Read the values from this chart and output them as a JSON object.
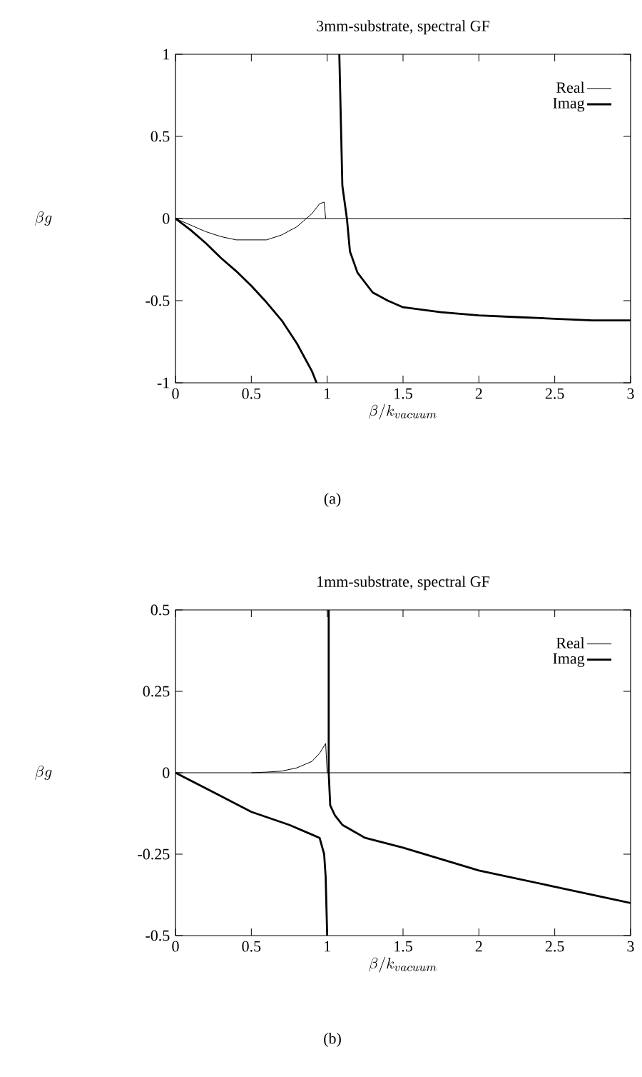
{
  "chart_data": [
    {
      "type": "line",
      "title": "3mm-substrate, spectral GF",
      "xlabel": "\\beta/k_{vacuum}",
      "ylabel": "\\beta g",
      "xlim": [
        0,
        3
      ],
      "ylim": [
        -1,
        1
      ],
      "xticks": [
        0,
        0.5,
        1,
        1.5,
        2,
        2.5,
        3
      ],
      "yticks": [
        -1,
        -0.5,
        0,
        0.5,
        1
      ],
      "legend": "top right",
      "grid": false,
      "marker": "none",
      "line_style": "solid",
      "annotations": [
        "(a)"
      ],
      "ref_lines": [
        {
          "axis": "y",
          "value": 0,
          "color": "#000000"
        }
      ],
      "series": [
        {
          "name": "Real",
          "color": "#000000",
          "x": [
            0,
            0.1,
            0.2,
            0.3,
            0.4,
            0.5,
            0.6,
            0.7,
            0.8,
            0.9,
            0.95,
            0.98,
            0.99
          ],
          "values": [
            0,
            -0.04,
            -0.08,
            -0.11,
            -0.13,
            -0.13,
            -0.13,
            -0.1,
            -0.05,
            0.03,
            0.09,
            0.1,
            0
          ]
        },
        {
          "name": "Imag",
          "color": "#000000",
          "x": [
            0,
            0.1,
            0.2,
            0.3,
            0.4,
            0.5,
            0.6,
            0.7,
            0.8,
            0.9,
            0.93,
            1.0,
            1.08,
            1.09,
            1.1,
            1.13,
            1.15,
            1.2,
            1.3,
            1.4,
            1.5,
            1.75,
            2,
            2.25,
            2.5,
            2.75,
            3
          ],
          "values": [
            0,
            -0.07,
            -0.15,
            -0.24,
            -0.32,
            -0.41,
            -0.51,
            -0.62,
            -0.76,
            -0.93,
            -1,
            null,
            1,
            0.6,
            0.2,
            0,
            -0.2,
            -0.33,
            -0.45,
            -0.5,
            -0.54,
            -0.57,
            -0.59,
            -0.6,
            -0.61,
            -0.62,
            -0.62
          ]
        }
      ]
    },
    {
      "type": "line",
      "title": "1mm-substrate, spectral GF",
      "xlabel": "\\beta/k_{vacuum}",
      "ylabel": "\\beta g",
      "xlim": [
        0,
        3
      ],
      "ylim": [
        -0.5,
        0.5
      ],
      "xticks": [
        0,
        0.5,
        1,
        1.5,
        2,
        2.5,
        3
      ],
      "yticks": [
        -0.5,
        -0.25,
        0,
        0.25,
        0.5
      ],
      "legend": "top right",
      "grid": false,
      "marker": "none",
      "line_style": "solid",
      "annotations": [
        "(b)"
      ],
      "ref_lines": [
        {
          "axis": "y",
          "value": 0,
          "color": "#000000"
        }
      ],
      "series": [
        {
          "name": "Real",
          "color": "#000000",
          "x": [
            0.5,
            0.6,
            0.7,
            0.8,
            0.9,
            0.95,
            0.99,
            1.0
          ],
          "values": [
            0,
            0.002,
            0.005,
            0.015,
            0.035,
            0.06,
            0.09,
            0
          ]
        },
        {
          "name": "Imag",
          "color": "#000000",
          "x": [
            0,
            0.25,
            0.5,
            0.75,
            0.9,
            0.95,
            0.98,
            0.99,
            1.0,
            1.005,
            1.01,
            1.01,
            1.02,
            1.05,
            1.1,
            1.25,
            1.5,
            2,
            2.5,
            3
          ],
          "values": [
            0,
            -0.06,
            -0.12,
            -0.16,
            -0.19,
            -0.2,
            -0.25,
            -0.32,
            -0.5,
            null,
            0.5,
            0,
            -0.1,
            -0.13,
            -0.16,
            -0.2,
            -0.23,
            -0.3,
            -0.35,
            -0.4
          ]
        }
      ]
    }
  ]
}
